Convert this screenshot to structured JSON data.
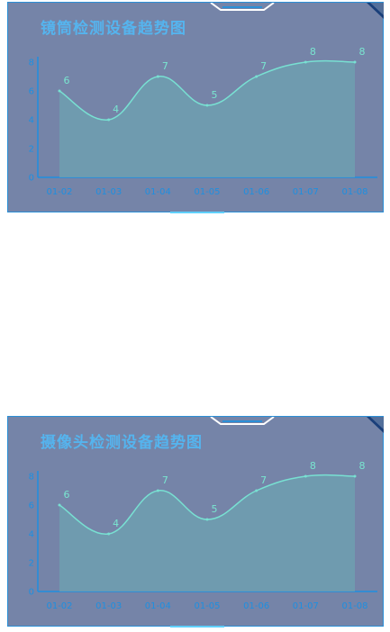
{
  "chart_data": [
    {
      "type": "area",
      "title": "镜筒检测设备趋势图",
      "categories": [
        "01-02",
        "01-03",
        "01-04",
        "01-05",
        "01-06",
        "01-07",
        "01-08"
      ],
      "values": [
        6,
        4,
        7,
        5,
        7,
        8,
        8
      ],
      "ylim": [
        0,
        8
      ],
      "yticks": [
        0,
        2,
        4,
        6,
        8
      ],
      "grid": false,
      "colors": {
        "line": "#78e0d2",
        "fill": "#6e9fb0",
        "axis": "#1e8fe0",
        "title": "#55b4ee",
        "background": "#7584a8"
      }
    },
    {
      "type": "area",
      "title": "摄像头检测设备趋势图",
      "categories": [
        "01-02",
        "01-03",
        "01-04",
        "01-05",
        "01-06",
        "01-07",
        "01-08"
      ],
      "values": [
        6,
        4,
        7,
        5,
        7,
        8,
        8
      ],
      "ylim": [
        0,
        8
      ],
      "yticks": [
        0,
        2,
        4,
        6,
        8
      ],
      "grid": false,
      "colors": {
        "line": "#78e0d2",
        "fill": "#6e9fb0",
        "axis": "#1e8fe0",
        "title": "#55b4ee",
        "background": "#7584a8"
      }
    }
  ]
}
